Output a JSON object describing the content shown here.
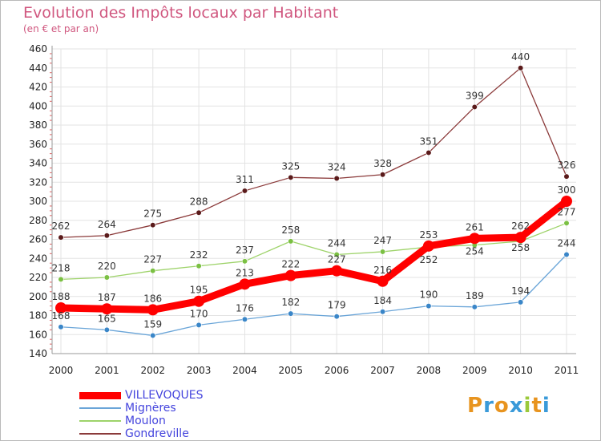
{
  "header": {
    "title": "Evolution des Impôts locaux par Habitant",
    "subtitle": "(en € et par an)"
  },
  "logo": {
    "text": "Proxiti",
    "letters": [
      "P",
      "r",
      "o",
      "x",
      "i",
      "t",
      "i"
    ],
    "colors": [
      "#e8941f",
      "#3a9ad9",
      "#e8941f",
      "#3a9ad9",
      "#9bc93b",
      "#e8941f",
      "#3a9ad9"
    ]
  },
  "chart_data": {
    "type": "line",
    "title": "Evolution des Impôts locaux par Habitant",
    "subtitle": "(en € et par an)",
    "xlabel": "",
    "ylabel": "",
    "x": [
      "2000",
      "2001",
      "2002",
      "2003",
      "2004",
      "2005",
      "2006",
      "2007",
      "2008",
      "2009",
      "2010",
      "2011"
    ],
    "ylim": [
      140,
      460
    ],
    "yticks": [
      140,
      160,
      180,
      200,
      220,
      240,
      260,
      280,
      300,
      320,
      340,
      360,
      380,
      400,
      420,
      440,
      460
    ],
    "grid": true,
    "legend_position": "bottom-left",
    "series": [
      {
        "name": "Gondreville",
        "color": "#8b3a3a",
        "marker_color": "#5a1a1a",
        "values": [
          262,
          264,
          275,
          288,
          311,
          325,
          324,
          328,
          351,
          399,
          440,
          326
        ],
        "label_offsets": [
          -10,
          -10,
          -10,
          -10,
          -10,
          -10,
          -10,
          -10,
          -10,
          -10,
          -10,
          -10
        ],
        "legend_color": "#8b3a3a"
      },
      {
        "name": "Moulon",
        "color": "#9ed36a",
        "marker_color": "#7bc043",
        "values": [
          218,
          220,
          227,
          232,
          237,
          258,
          244,
          247,
          252,
          254,
          258,
          277
        ],
        "label_offsets": [
          -10,
          -10,
          -10,
          -10,
          -10,
          -10,
          -10,
          -10,
          20,
          12,
          12,
          -10
        ],
        "legend_color": "#9ed36a"
      },
      {
        "name": "Mignères",
        "color": "#6aa5d8",
        "marker_color": "#3a86c8",
        "values": [
          168,
          165,
          159,
          170,
          176,
          182,
          179,
          184,
          190,
          189,
          194,
          244
        ],
        "label_offsets": [
          -10,
          -10,
          -10,
          -10,
          -10,
          -10,
          -10,
          -10,
          -10,
          -10,
          -10,
          -10
        ],
        "legend_color": "#6aa5d8"
      },
      {
        "name": "VILLEVOQUES",
        "color": "#ff0000",
        "marker_color": "#ff0000",
        "values": [
          188,
          187,
          186,
          195,
          213,
          222,
          227,
          216,
          253,
          261,
          262,
          300
        ],
        "label_offsets": [
          -10,
          -10,
          -10,
          -10,
          -10,
          -10,
          -10,
          -10,
          -10,
          -10,
          -10,
          -10
        ],
        "legend_color": "#ff0000"
      }
    ],
    "legend": [
      {
        "name": "VILLEVOQUES",
        "color": "#ff0000",
        "text_color": "#4444dd",
        "thick": true
      },
      {
        "name": "Mignères",
        "color": "#6aa5d8",
        "text_color": "#4444dd",
        "thick": false
      },
      {
        "name": "Moulon",
        "color": "#9ed36a",
        "text_color": "#4444dd",
        "thick": false
      },
      {
        "name": "Gondreville",
        "color": "#8b3a3a",
        "text_color": "#4444dd",
        "thick": false
      }
    ]
  }
}
